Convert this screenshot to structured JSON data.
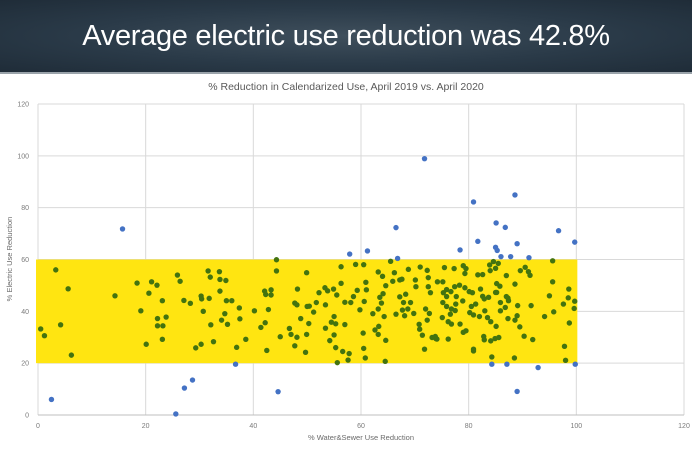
{
  "slide": {
    "title": "Average electric use reduction was 42.8%"
  },
  "chart_data": {
    "type": "scatter",
    "title": "% Reduction in Calendarized Use,  April 2019 vs. April 2020",
    "xlabel": "% Water&Sewer Use Reduction",
    "ylabel": "% Electric Use Reduction",
    "xlim": [
      0,
      120
    ],
    "ylim": [
      0,
      120
    ],
    "xticks": [
      0,
      20,
      40,
      60,
      80,
      100,
      120
    ],
    "yticks": [
      0,
      20,
      40,
      60,
      80,
      100,
      120
    ],
    "grid": "vertical and horizontal major gridlines",
    "highlight_band": {
      "x": [
        0,
        100
      ],
      "y": [
        20,
        60
      ],
      "color": "#FFE511"
    },
    "colors": {
      "inside_band": "#43730f",
      "outside_band": "#4472C4"
    },
    "series": [
      {
        "color": "#4472C4",
        "points": [
          [
            2.5,
            6
          ],
          [
            15.7,
            71.8
          ],
          [
            25.6,
            0.4
          ],
          [
            27.2,
            10.4
          ],
          [
            28.7,
            13.5
          ],
          [
            36.7,
            19.6
          ],
          [
            44.6,
            9
          ],
          [
            57.9,
            62.1
          ],
          [
            61.2,
            63.3
          ],
          [
            66.8,
            60.4
          ],
          [
            66.5,
            72.3
          ],
          [
            71.8,
            98.9
          ],
          [
            78.4,
            63.7
          ],
          [
            80.9,
            82.2
          ],
          [
            81.7,
            67
          ],
          [
            85.1,
            74.1
          ],
          [
            86.8,
            72.4
          ],
          [
            88.6,
            84.9
          ],
          [
            85,
            64.7
          ],
          [
            85.3,
            63.5
          ],
          [
            86,
            61.1
          ],
          [
            87.8,
            61.1
          ],
          [
            89,
            66.1
          ],
          [
            91.2,
            60.7
          ],
          [
            96.7,
            71.1
          ],
          [
            99.7,
            66.7
          ],
          [
            84.3,
            19.6
          ],
          [
            87.1,
            19.6
          ],
          [
            92.9,
            18.3
          ],
          [
            89,
            9.1
          ],
          [
            99.8,
            19.6
          ]
        ]
      },
      {
        "color": "#43730f",
        "points": [
          [
            0.5,
            33.2
          ],
          [
            1.2,
            30.6
          ],
          [
            3.3,
            56
          ],
          [
            5.6,
            48.7
          ],
          [
            4.2,
            34.8
          ],
          [
            6.2,
            23.1
          ],
          [
            14.3,
            46
          ],
          [
            18.4,
            50.9
          ],
          [
            19.1,
            40.2
          ],
          [
            20.1,
            27.3
          ],
          [
            21.1,
            51.4
          ],
          [
            22.1,
            50.1
          ],
          [
            20.6,
            47
          ],
          [
            23.1,
            44.1
          ],
          [
            22.2,
            37.2
          ],
          [
            23.8,
            37.8
          ],
          [
            22.2,
            34.4
          ],
          [
            23.2,
            34.4
          ],
          [
            23.1,
            29.2
          ],
          [
            25.9,
            54
          ],
          [
            26.4,
            51.6
          ],
          [
            27.1,
            44.2
          ],
          [
            28.3,
            43.1
          ],
          [
            29.3,
            25.9
          ],
          [
            30.3,
            27.3
          ],
          [
            30.3,
            45.9
          ],
          [
            30.4,
            44.8
          ],
          [
            30.7,
            40
          ],
          [
            31.8,
            45
          ],
          [
            32.1,
            34.8
          ],
          [
            32.6,
            28.3
          ],
          [
            31.6,
            55.6
          ],
          [
            32,
            53.2
          ],
          [
            33.7,
            55.3
          ],
          [
            33.8,
            52.3
          ],
          [
            34.9,
            51.9
          ],
          [
            33.8,
            47.8
          ],
          [
            35,
            44.1
          ],
          [
            36,
            44.1
          ],
          [
            34.7,
            39.1
          ],
          [
            34.1,
            36.6
          ],
          [
            35.2,
            35
          ],
          [
            36.9,
            26.1
          ],
          [
            37.4,
            41.3
          ],
          [
            37.5,
            37.1
          ],
          [
            38.6,
            29.2
          ],
          [
            40.2,
            40.2
          ],
          [
            41.4,
            33.8
          ],
          [
            42.2,
            35.6
          ],
          [
            42.1,
            47.8
          ],
          [
            42.3,
            46.5
          ],
          [
            43.3,
            48.3
          ],
          [
            43.3,
            46.3
          ],
          [
            44.3,
            59.9
          ],
          [
            44.3,
            55.6
          ],
          [
            42.8,
            40.7
          ],
          [
            42.5,
            24.9
          ],
          [
            45,
            30.2
          ],
          [
            46.7,
            33.4
          ],
          [
            47,
            31.1
          ],
          [
            47.7,
            26.7
          ],
          [
            48.1,
            30
          ],
          [
            48.2,
            48.6
          ],
          [
            47.7,
            43.2
          ],
          [
            48.1,
            42.5
          ],
          [
            48.8,
            37.2
          ],
          [
            49.9,
            54.9
          ],
          [
            50.4,
            42
          ],
          [
            50.3,
            35.3
          ],
          [
            49.9,
            31.1
          ],
          [
            49.7,
            24.2
          ],
          [
            56.3,
            57.2
          ],
          [
            59,
            58.1
          ],
          [
            60.5,
            58
          ],
          [
            52.2,
            47.2
          ],
          [
            53.3,
            49.1
          ],
          [
            53.8,
            47.9
          ],
          [
            54.9,
            48.6
          ],
          [
            55.5,
            46.3
          ],
          [
            56.3,
            50.8
          ],
          [
            57,
            43.5
          ],
          [
            58.1,
            43.4
          ],
          [
            59.3,
            48.1
          ],
          [
            60.9,
            51.2
          ],
          [
            61,
            48.3
          ],
          [
            60.6,
            43.8
          ],
          [
            59.8,
            40.6
          ],
          [
            58.6,
            45.7
          ],
          [
            53.4,
            42.5
          ],
          [
            51.7,
            43.4
          ],
          [
            51.2,
            39.7
          ],
          [
            50,
            41.9
          ],
          [
            53.4,
            33.5
          ],
          [
            54.5,
            35.8
          ],
          [
            55.3,
            35.2
          ],
          [
            57,
            34.9
          ],
          [
            55,
            38
          ],
          [
            55,
            30.9
          ],
          [
            54.2,
            28.7
          ],
          [
            55.3,
            26
          ],
          [
            56.6,
            24.5
          ],
          [
            57.8,
            23.7
          ],
          [
            57.6,
            21.2
          ],
          [
            55.6,
            20.2
          ],
          [
            60.4,
            31.6
          ],
          [
            60.5,
            25.7
          ],
          [
            60.8,
            22
          ],
          [
            62.6,
            32.8
          ],
          [
            63.3,
            34.2
          ],
          [
            63.2,
            31.1
          ],
          [
            64.6,
            28.8
          ],
          [
            64.5,
            20.7
          ],
          [
            62.2,
            39.1
          ],
          [
            63.2,
            40.9
          ],
          [
            63.8,
            43.2
          ],
          [
            63.5,
            45.4
          ],
          [
            64.3,
            38
          ],
          [
            64.1,
            46.8
          ],
          [
            64.6,
            49.9
          ],
          [
            63.2,
            55.2
          ],
          [
            64,
            53.5
          ],
          [
            65.5,
            59.3
          ],
          [
            66.2,
            54.9
          ],
          [
            65.9,
            51.6
          ],
          [
            67.2,
            52.1
          ],
          [
            67.6,
            52.4
          ],
          [
            68.8,
            56.2
          ],
          [
            71,
            57.1
          ],
          [
            72.3,
            55.8
          ],
          [
            72.5,
            53
          ],
          [
            70.1,
            52.1
          ],
          [
            70.2,
            49.5
          ],
          [
            72.5,
            49.5
          ],
          [
            72.9,
            47.2
          ],
          [
            68.3,
            46.6
          ],
          [
            67.2,
            45.6
          ],
          [
            67.9,
            43.4
          ],
          [
            69.2,
            43.4
          ],
          [
            68.7,
            40.9
          ],
          [
            67.7,
            40.5
          ],
          [
            66.5,
            38.9
          ],
          [
            68.1,
            38.3
          ],
          [
            69.8,
            39.2
          ],
          [
            72,
            40.9
          ],
          [
            72.7,
            39.2
          ],
          [
            72.3,
            36.6
          ],
          [
            70.8,
            35
          ],
          [
            70.9,
            33.1
          ],
          [
            71.4,
            30.8
          ],
          [
            73.2,
            29.9
          ],
          [
            73.9,
            29.5
          ],
          [
            71.8,
            25.4
          ],
          [
            75.5,
            56.9
          ],
          [
            77.3,
            56.5
          ],
          [
            79,
            57.6
          ],
          [
            79.5,
            56.5
          ],
          [
            79.3,
            54.6
          ],
          [
            81.7,
            54.1
          ],
          [
            82.6,
            54.2
          ],
          [
            83.9,
            57.9
          ],
          [
            84.6,
            59.2
          ],
          [
            85.5,
            58.5
          ],
          [
            84,
            55.7
          ],
          [
            85,
            56.6
          ],
          [
            87,
            53.8
          ],
          [
            88.6,
            50.5
          ],
          [
            89.6,
            55.7
          ],
          [
            90.5,
            57
          ],
          [
            91.1,
            55.3
          ],
          [
            91.4,
            53.9
          ],
          [
            95.6,
            59.5
          ],
          [
            95.6,
            51.4
          ],
          [
            95,
            46
          ],
          [
            95.8,
            39.8
          ],
          [
            94.1,
            38
          ],
          [
            97.6,
            42.8
          ],
          [
            98.6,
            48.6
          ],
          [
            98.5,
            45.2
          ],
          [
            99.7,
            43.9
          ],
          [
            99.6,
            41.1
          ],
          [
            98.7,
            35.5
          ],
          [
            97.8,
            26.5
          ],
          [
            98,
            21.1
          ],
          [
            74.2,
            51.4
          ],
          [
            75.2,
            51.4
          ],
          [
            75.9,
            48.4
          ],
          [
            75.3,
            47.2
          ],
          [
            76.7,
            47.6
          ],
          [
            77.4,
            49.5
          ],
          [
            78.3,
            50.1
          ],
          [
            79.3,
            49.1
          ],
          [
            80.1,
            47.6
          ],
          [
            80.7,
            47.2
          ],
          [
            82.2,
            48.6
          ],
          [
            82.6,
            45.8
          ],
          [
            82.9,
            44.8
          ],
          [
            85.2,
            50.7
          ],
          [
            85.8,
            49.7
          ],
          [
            85,
            47.3
          ],
          [
            83.7,
            45.4
          ],
          [
            75.9,
            45.7
          ],
          [
            77.7,
            45.7
          ],
          [
            78.9,
            44
          ],
          [
            75.2,
            43.4
          ],
          [
            75.9,
            41.9
          ],
          [
            76.8,
            40.9
          ],
          [
            77.6,
            42.8
          ],
          [
            80.5,
            41.9
          ],
          [
            81.3,
            42.8
          ],
          [
            80.9,
            38.6
          ],
          [
            82,
            38
          ],
          [
            83,
            40.2
          ],
          [
            80.2,
            39.5
          ],
          [
            77.5,
            40.3
          ],
          [
            76.6,
            38.9
          ],
          [
            75.1,
            37.6
          ],
          [
            76.2,
            36
          ],
          [
            76.8,
            35.1
          ],
          [
            78.4,
            35.1
          ],
          [
            79.5,
            32.5
          ],
          [
            79,
            31.9
          ],
          [
            76.2,
            29.3
          ],
          [
            73.8,
            30.3
          ],
          [
            74.1,
            29.3
          ],
          [
            80.9,
            25.4
          ],
          [
            80.9,
            24.7
          ],
          [
            82.8,
            30.3
          ],
          [
            82.9,
            29
          ],
          [
            84.1,
            28.6
          ],
          [
            84.9,
            29.5
          ],
          [
            85.6,
            29.9
          ],
          [
            84.3,
            22.4
          ],
          [
            88.5,
            22
          ],
          [
            83.5,
            37.6
          ],
          [
            84.1,
            36
          ],
          [
            85.1,
            34.2
          ],
          [
            85.9,
            40.2
          ],
          [
            85.9,
            43.4
          ],
          [
            86.8,
            41.5
          ],
          [
            87.3,
            45.1
          ],
          [
            87.4,
            44.1
          ],
          [
            89.1,
            42.2
          ],
          [
            87.3,
            37.2
          ],
          [
            88.6,
            36.6
          ],
          [
            89,
            38.3
          ],
          [
            89.5,
            34
          ],
          [
            90.3,
            30.4
          ],
          [
            91.9,
            29.1
          ],
          [
            91.6,
            42.2
          ],
          [
            85.2,
            47.3
          ],
          [
            87,
            45.7
          ]
        ]
      }
    ]
  }
}
